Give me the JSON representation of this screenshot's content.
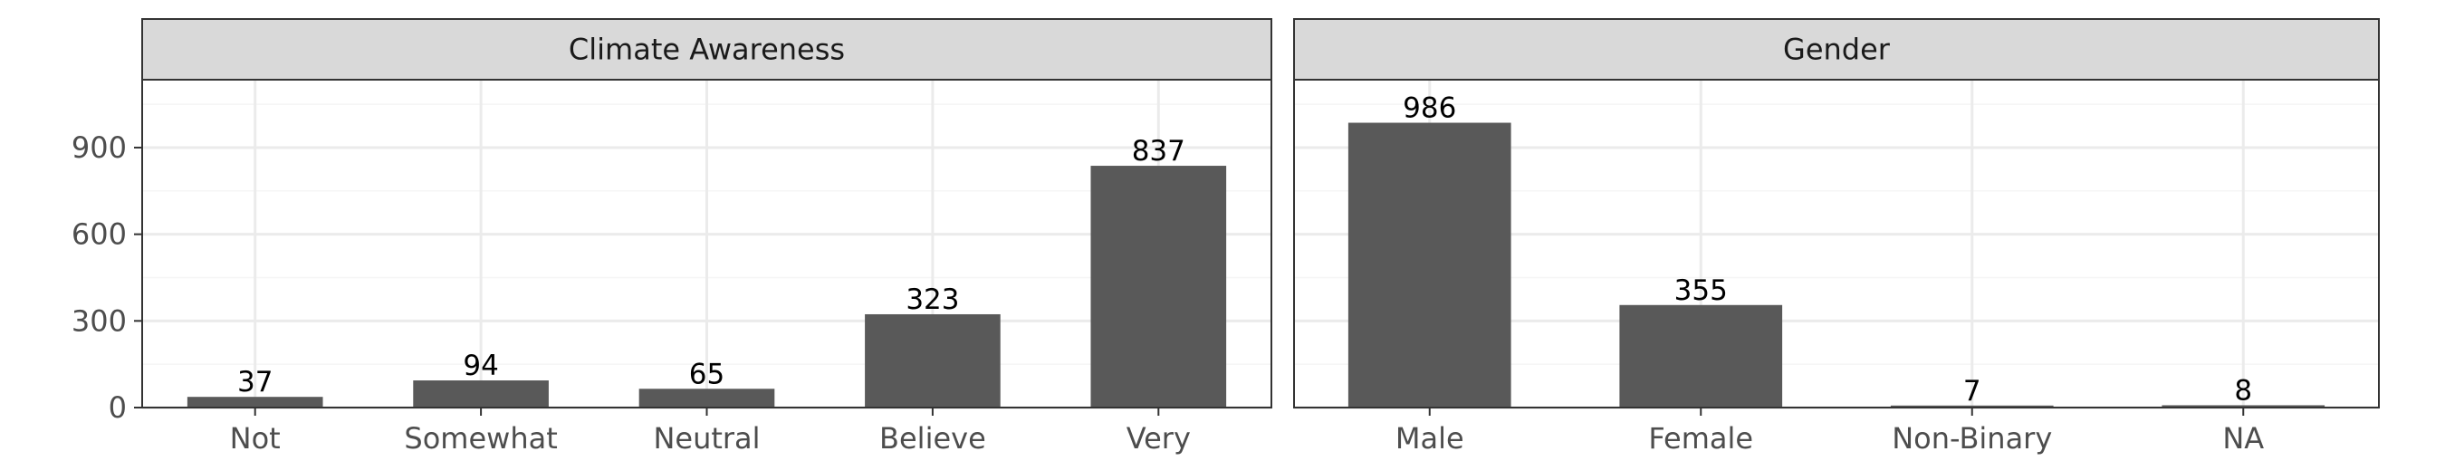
{
  "colors": {
    "bar": "#595959",
    "strip_fill": "#d9d9d9",
    "panel_border": "#333333",
    "grid_major": "#ebebeb",
    "grid_minor": "#f5f5f5",
    "background": "#ffffff"
  },
  "chart_data": {
    "type": "bar",
    "y_axis": {
      "ylim": [
        0,
        1135
      ],
      "ticks": [
        0,
        300,
        600,
        900
      ],
      "minor_ticks": [
        150,
        450,
        750,
        1050
      ]
    },
    "grid": true,
    "panels": [
      {
        "title": "Climate Awareness",
        "categories": [
          "Not",
          "Somewhat",
          "Neutral",
          "Believe",
          "Very"
        ],
        "values": [
          37,
          94,
          65,
          323,
          837
        ],
        "data_labels": [
          "37",
          "94",
          "65",
          "323",
          "837"
        ]
      },
      {
        "title": "Gender",
        "categories": [
          "Male",
          "Female",
          "Non-Binary",
          "NA"
        ],
        "values": [
          986,
          355,
          7,
          8
        ],
        "data_labels": [
          "986",
          "355",
          "7",
          "8"
        ]
      }
    ]
  }
}
